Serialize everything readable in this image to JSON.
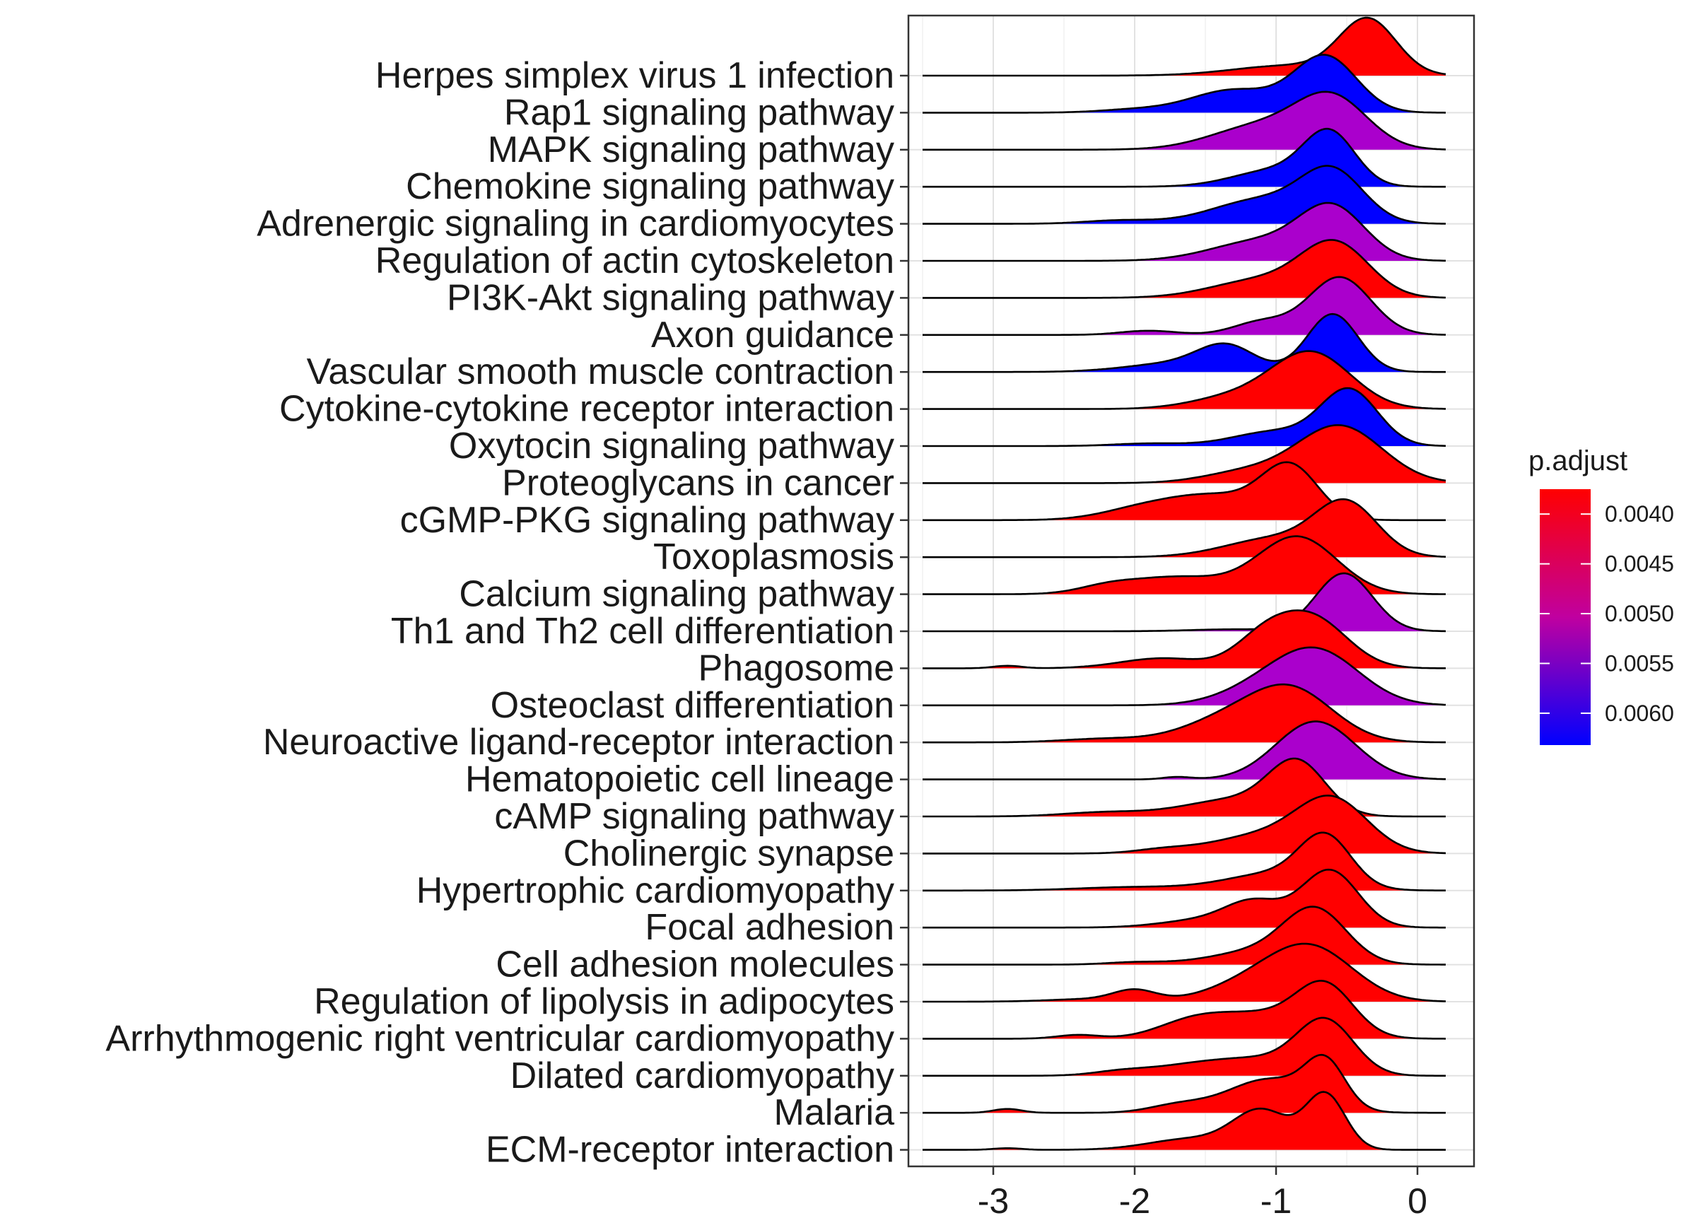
{
  "chart_data": {
    "type": "ridgeline",
    "title": "",
    "xlabel": "",
    "ylabel": "",
    "xlim": [
      -3.6,
      0.4
    ],
    "x_ticks": [
      -3,
      -2,
      -1,
      0
    ],
    "x_tick_labels": [
      "-3",
      "-2",
      "-1",
      "0"
    ],
    "grid": true,
    "legend": {
      "title": "p.adjust",
      "placement": "right",
      "type": "colorbar",
      "range": [
        0.00375,
        0.00632
      ],
      "ticks": [
        0.004,
        0.0045,
        0.005,
        0.0055,
        0.006
      ],
      "tick_labels": [
        "0.0040",
        "0.0045",
        "0.0050",
        "0.0055",
        "0.0060"
      ],
      "low_color": "#ff0000",
      "high_color": "#0000ff"
    },
    "categories": [
      "Herpes simplex virus 1 infection",
      "Rap1 signaling pathway",
      "MAPK signaling pathway",
      "Chemokine signaling pathway",
      "Adrenergic signaling in cardiomyocytes",
      "Regulation of actin cytoskeleton",
      "PI3K-Akt signaling pathway",
      "Axon guidance",
      "Vascular smooth muscle contraction",
      "Cytokine-cytokine receptor interaction",
      "Oxytocin signaling pathway",
      "Proteoglycans in cancer",
      "cGMP-PKG signaling pathway",
      "Toxoplasmosis",
      "Calcium signaling pathway",
      "Th1 and Th2 cell differentiation",
      "Phagosome",
      "Osteoclast differentiation",
      "Neuroactive ligand-receptor interaction",
      "Hematopoietic cell lineage",
      "cAMP signaling pathway",
      "Cholinergic synapse",
      "Hypertrophic cardiomyopathy",
      "Focal adhesion",
      "Cell adhesion molecules",
      "Regulation of lipolysis in adipocytes",
      "Arrhythmogenic right ventricular cardiomyopathy",
      "Dilated cardiomyopathy",
      "Malaria",
      "ECM-receptor interaction"
    ],
    "series": [
      {
        "p_adjust": 0.0038,
        "fill": "#ff0000",
        "range": [
          -3.5,
          0.2
        ],
        "components": [
          [
            -0.35,
            0.2,
            1.6
          ],
          [
            -0.9,
            0.4,
            0.3
          ]
        ]
      },
      {
        "p_adjust": 0.0062,
        "fill": "#0000ff",
        "range": [
          -3.5,
          0.2
        ],
        "components": [
          [
            -0.65,
            0.22,
            1.1
          ],
          [
            -1.3,
            0.3,
            0.45
          ],
          [
            -2.0,
            0.25,
            0.06
          ]
        ]
      },
      {
        "p_adjust": 0.0055,
        "fill": "#aa00cc",
        "range": [
          -3.5,
          0.2
        ],
        "components": [
          [
            -0.6,
            0.25,
            1.0
          ],
          [
            -1.1,
            0.35,
            0.5
          ]
        ]
      },
      {
        "p_adjust": 0.0062,
        "fill": "#0000ff",
        "range": [
          -3.5,
          0.2
        ],
        "components": [
          [
            -0.62,
            0.18,
            1.2
          ],
          [
            -1.0,
            0.3,
            0.4
          ]
        ]
      },
      {
        "p_adjust": 0.0062,
        "fill": "#0000ff",
        "range": [
          -3.5,
          0.2
        ],
        "components": [
          [
            -0.6,
            0.22,
            1.0
          ],
          [
            -1.1,
            0.35,
            0.5
          ],
          [
            -2.1,
            0.25,
            0.07
          ]
        ]
      },
      {
        "p_adjust": 0.0055,
        "fill": "#aa00cc",
        "range": [
          -3.5,
          0.2
        ],
        "components": [
          [
            -0.6,
            0.23,
            1.0
          ],
          [
            -1.1,
            0.35,
            0.4
          ]
        ]
      },
      {
        "p_adjust": 0.0038,
        "fill": "#ff0000",
        "range": [
          -3.5,
          0.2
        ],
        "components": [
          [
            -0.58,
            0.24,
            1.0
          ],
          [
            -1.1,
            0.35,
            0.35
          ]
        ]
      },
      {
        "p_adjust": 0.0056,
        "fill": "#aa00cc",
        "range": [
          -3.5,
          0.2
        ],
        "components": [
          [
            -0.55,
            0.22,
            1.1
          ],
          [
            -1.1,
            0.2,
            0.25
          ],
          [
            -1.9,
            0.2,
            0.08
          ]
        ]
      },
      {
        "p_adjust": 0.0062,
        "fill": "#0000ff",
        "range": [
          -3.5,
          0.2
        ],
        "components": [
          [
            -0.6,
            0.18,
            1.0
          ],
          [
            -1.35,
            0.2,
            0.4
          ],
          [
            -1.7,
            0.35,
            0.15
          ]
        ]
      },
      {
        "p_adjust": 0.0038,
        "fill": "#ff0000",
        "range": [
          -3.5,
          0.2
        ],
        "components": [
          [
            -0.75,
            0.28,
            1.2
          ],
          [
            -1.3,
            0.3,
            0.25
          ]
        ]
      },
      {
        "p_adjust": 0.0062,
        "fill": "#0000ff",
        "range": [
          -3.5,
          0.2
        ],
        "components": [
          [
            -0.48,
            0.2,
            1.3
          ],
          [
            -1.0,
            0.3,
            0.35
          ],
          [
            -1.9,
            0.25,
            0.06
          ]
        ]
      },
      {
        "p_adjust": 0.0038,
        "fill": "#ff0000",
        "range": [
          -3.5,
          0.2
        ],
        "components": [
          [
            -0.55,
            0.3,
            1.0
          ],
          [
            -1.2,
            0.3,
            0.2
          ]
        ]
      },
      {
        "p_adjust": 0.0038,
        "fill": "#ff0000",
        "range": [
          -3.5,
          0.2
        ],
        "components": [
          [
            -0.9,
            0.2,
            1.2
          ],
          [
            -1.4,
            0.3,
            0.5
          ],
          [
            -1.9,
            0.3,
            0.3
          ]
        ]
      },
      {
        "p_adjust": 0.0038,
        "fill": "#ff0000",
        "range": [
          -3.5,
          0.2
        ],
        "components": [
          [
            -0.5,
            0.22,
            1.2
          ],
          [
            -1.0,
            0.35,
            0.45
          ]
        ]
      },
      {
        "p_adjust": 0.0038,
        "fill": "#ff0000",
        "range": [
          -3.5,
          0.2
        ],
        "components": [
          [
            -0.85,
            0.28,
            1.0
          ],
          [
            -1.7,
            0.35,
            0.3
          ],
          [
            -2.2,
            0.2,
            0.1
          ]
        ]
      },
      {
        "p_adjust": 0.0055,
        "fill": "#aa00cc",
        "range": [
          -3.5,
          0.2
        ],
        "components": [
          [
            -0.52,
            0.2,
            1.5
          ],
          [
            -1.3,
            0.3,
            0.05
          ]
        ]
      },
      {
        "p_adjust": 0.0038,
        "fill": "#ff0000",
        "range": [
          -3.5,
          0.2
        ],
        "components": [
          [
            -0.75,
            0.25,
            1.0
          ],
          [
            -1.1,
            0.2,
            0.5
          ],
          [
            -1.8,
            0.3,
            0.2
          ],
          [
            -2.9,
            0.1,
            0.05
          ]
        ]
      },
      {
        "p_adjust": 0.0056,
        "fill": "#aa00cc",
        "range": [
          -3.5,
          0.2
        ],
        "components": [
          [
            -0.7,
            0.3,
            1.0
          ],
          [
            -1.1,
            0.3,
            0.3
          ]
        ]
      },
      {
        "p_adjust": 0.0038,
        "fill": "#ff0000",
        "range": [
          -3.5,
          0.2
        ],
        "components": [
          [
            -0.9,
            0.3,
            1.0
          ],
          [
            -1.4,
            0.3,
            0.35
          ],
          [
            -2.2,
            0.3,
            0.07
          ]
        ]
      },
      {
        "p_adjust": 0.0056,
        "fill": "#aa00cc",
        "range": [
          -3.5,
          0.2
        ],
        "components": [
          [
            -0.72,
            0.28,
            1.2
          ],
          [
            -1.7,
            0.1,
            0.05
          ]
        ]
      },
      {
        "p_adjust": 0.0038,
        "fill": "#ff0000",
        "range": [
          -3.5,
          0.2
        ],
        "components": [
          [
            -0.85,
            0.2,
            1.2
          ],
          [
            -1.3,
            0.35,
            0.4
          ],
          [
            -2.2,
            0.3,
            0.1
          ]
        ]
      },
      {
        "p_adjust": 0.0038,
        "fill": "#ff0000",
        "range": [
          -3.5,
          0.2
        ],
        "components": [
          [
            -0.6,
            0.25,
            1.0
          ],
          [
            -1.1,
            0.35,
            0.35
          ],
          [
            -1.8,
            0.2,
            0.07
          ]
        ]
      },
      {
        "p_adjust": 0.0038,
        "fill": "#ff0000",
        "range": [
          -3.5,
          0.2
        ],
        "components": [
          [
            -0.65,
            0.18,
            1.1
          ],
          [
            -1.0,
            0.35,
            0.4
          ],
          [
            -2.0,
            0.4,
            0.08
          ]
        ]
      },
      {
        "p_adjust": 0.0038,
        "fill": "#ff0000",
        "range": [
          -3.5,
          0.2
        ],
        "components": [
          [
            -0.62,
            0.2,
            1.1
          ],
          [
            -1.15,
            0.2,
            0.45
          ],
          [
            -1.5,
            0.3,
            0.15
          ]
        ]
      },
      {
        "p_adjust": 0.0038,
        "fill": "#ff0000",
        "range": [
          -3.5,
          0.2
        ],
        "components": [
          [
            -0.72,
            0.22,
            1.1
          ],
          [
            -1.1,
            0.35,
            0.3
          ],
          [
            -2.0,
            0.2,
            0.05
          ]
        ]
      },
      {
        "p_adjust": 0.0038,
        "fill": "#ff0000",
        "range": [
          -3.5,
          0.2
        ],
        "components": [
          [
            -0.75,
            0.3,
            1.0
          ],
          [
            -1.2,
            0.3,
            0.3
          ],
          [
            -2.0,
            0.15,
            0.2
          ],
          [
            -2.3,
            0.3,
            0.05
          ]
        ]
      },
      {
        "p_adjust": 0.0038,
        "fill": "#ff0000",
        "range": [
          -3.5,
          0.2
        ],
        "components": [
          [
            -0.65,
            0.2,
            1.0
          ],
          [
            -1.1,
            0.35,
            0.5
          ],
          [
            -1.6,
            0.25,
            0.3
          ],
          [
            -2.4,
            0.15,
            0.08
          ]
        ]
      },
      {
        "p_adjust": 0.0038,
        "fill": "#ff0000",
        "range": [
          -3.5,
          0.2
        ],
        "components": [
          [
            -0.65,
            0.2,
            1.1
          ],
          [
            -1.1,
            0.3,
            0.3
          ],
          [
            -1.6,
            0.3,
            0.2
          ],
          [
            -2.1,
            0.2,
            0.08
          ]
        ]
      },
      {
        "p_adjust": 0.0038,
        "fill": "#ff0000",
        "range": [
          -3.5,
          0.2
        ],
        "components": [
          [
            -0.65,
            0.14,
            0.9
          ],
          [
            -1.05,
            0.3,
            0.7
          ],
          [
            -1.7,
            0.2,
            0.15
          ],
          [
            -2.9,
            0.1,
            0.08
          ]
        ]
      },
      {
        "p_adjust": 0.0038,
        "fill": "#ff0000",
        "range": [
          -3.5,
          0.2
        ],
        "components": [
          [
            -0.65,
            0.14,
            1.0
          ],
          [
            -1.1,
            0.2,
            0.7
          ],
          [
            -1.6,
            0.3,
            0.2
          ],
          [
            -2.9,
            0.1,
            0.03
          ]
        ]
      }
    ]
  }
}
